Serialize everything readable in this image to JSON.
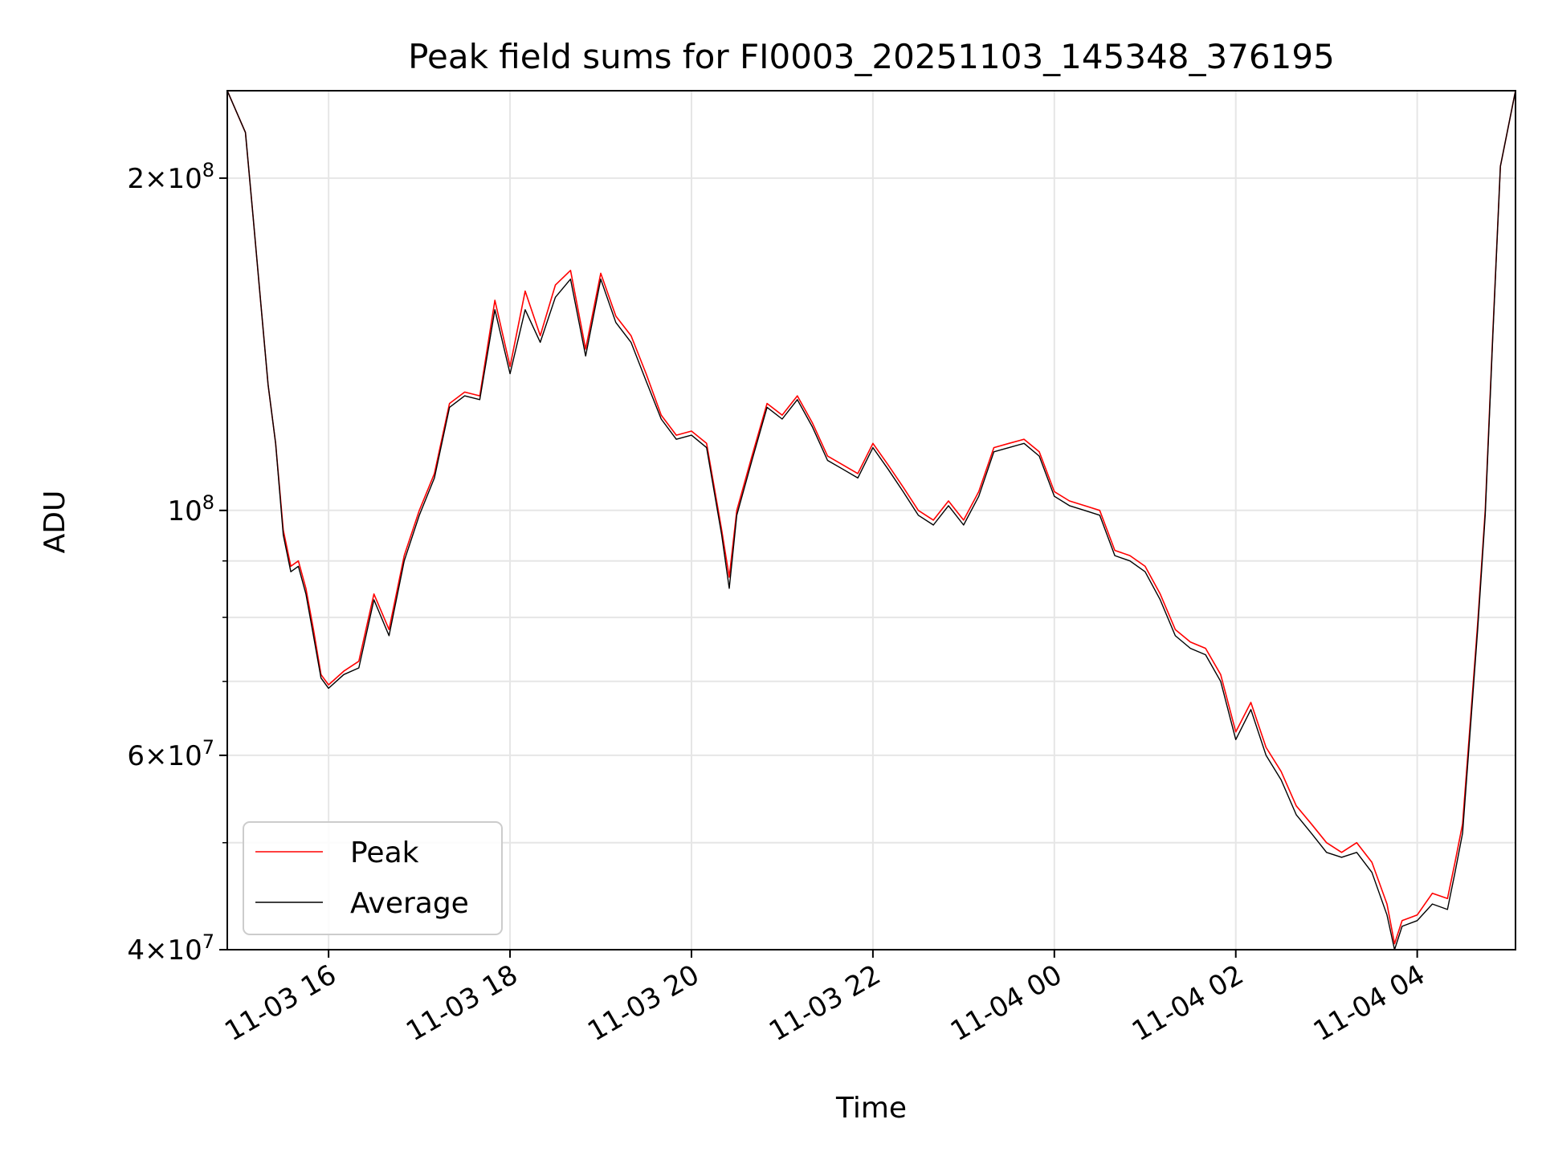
{
  "chart_data": {
    "type": "line",
    "title": "Peak field sums for FI0003_20251103_145348_376195",
    "xlabel": "Time",
    "ylabel": "ADU",
    "x_scale": "time",
    "y_scale": "log",
    "xlim": [
      "2025-11-03 14:53",
      "2025-11-04 05:05"
    ],
    "ylim": [
      40000000,
      240000000
    ],
    "grid": true,
    "legend": "lower-left",
    "x_ticks": [
      {
        "t": "2025-11-03 16:00",
        "label": "11-03 16"
      },
      {
        "t": "2025-11-03 18:00",
        "label": "11-03 18"
      },
      {
        "t": "2025-11-03 20:00",
        "label": "11-03 20"
      },
      {
        "t": "2025-11-03 22:00",
        "label": "11-03 22"
      },
      {
        "t": "2025-11-04 00:00",
        "label": "11-04 00"
      },
      {
        "t": "2025-11-04 02:00",
        "label": "11-04 02"
      },
      {
        "t": "2025-11-04 04:00",
        "label": "11-04 04"
      }
    ],
    "y_major_ticks": [
      {
        "value": 40000000,
        "mant": "4",
        "exp": "7"
      },
      {
        "value": 60000000,
        "mant": "6",
        "exp": "7"
      },
      {
        "value": 100000000,
        "mant": "",
        "exp": "8"
      },
      {
        "value": 200000000,
        "mant": "2",
        "exp": "8"
      }
    ],
    "y_minor_ticks": [
      50000000,
      70000000,
      80000000,
      90000000
    ],
    "series": [
      {
        "name": "Peak",
        "color": "#ff0000",
        "x": [
          "2025-11-03 14:53",
          "2025-11-03 15:05",
          "2025-11-03 15:10",
          "2025-11-03 15:15",
          "2025-11-03 15:20",
          "2025-11-03 15:25",
          "2025-11-03 15:30",
          "2025-11-03 15:35",
          "2025-11-03 15:40",
          "2025-11-03 15:45",
          "2025-11-03 15:50",
          "2025-11-03 15:55",
          "2025-11-03 16:00",
          "2025-11-03 16:10",
          "2025-11-03 16:20",
          "2025-11-03 16:30",
          "2025-11-03 16:40",
          "2025-11-03 16:50",
          "2025-11-03 17:00",
          "2025-11-03 17:10",
          "2025-11-03 17:20",
          "2025-11-03 17:30",
          "2025-11-03 17:40",
          "2025-11-03 17:50",
          "2025-11-03 18:00",
          "2025-11-03 18:10",
          "2025-11-03 18:20",
          "2025-11-03 18:30",
          "2025-11-03 18:40",
          "2025-11-03 18:50",
          "2025-11-03 19:00",
          "2025-11-03 19:10",
          "2025-11-03 19:20",
          "2025-11-03 19:30",
          "2025-11-03 19:40",
          "2025-11-03 19:50",
          "2025-11-03 20:00",
          "2025-11-03 20:10",
          "2025-11-03 20:20",
          "2025-11-03 20:25",
          "2025-11-03 20:30",
          "2025-11-03 20:40",
          "2025-11-03 20:50",
          "2025-11-03 21:00",
          "2025-11-03 21:10",
          "2025-11-03 21:20",
          "2025-11-03 21:30",
          "2025-11-03 21:40",
          "2025-11-03 21:50",
          "2025-11-03 22:00",
          "2025-11-03 22:10",
          "2025-11-03 22:20",
          "2025-11-03 22:30",
          "2025-11-03 22:40",
          "2025-11-03 22:50",
          "2025-11-03 23:00",
          "2025-11-03 23:10",
          "2025-11-03 23:20",
          "2025-11-03 23:30",
          "2025-11-03 23:40",
          "2025-11-03 23:50",
          "2025-11-04 00:00",
          "2025-11-04 00:10",
          "2025-11-04 00:20",
          "2025-11-04 00:30",
          "2025-11-04 00:40",
          "2025-11-04 00:50",
          "2025-11-04 01:00",
          "2025-11-04 01:10",
          "2025-11-04 01:20",
          "2025-11-04 01:30",
          "2025-11-04 01:40",
          "2025-11-04 01:50",
          "2025-11-04 02:00",
          "2025-11-04 02:10",
          "2025-11-04 02:20",
          "2025-11-04 02:30",
          "2025-11-04 02:40",
          "2025-11-04 02:50",
          "2025-11-04 03:00",
          "2025-11-04 03:10",
          "2025-11-04 03:20",
          "2025-11-04 03:30",
          "2025-11-04 03:40",
          "2025-11-04 03:45",
          "2025-11-04 03:50",
          "2025-11-04 04:00",
          "2025-11-04 04:10",
          "2025-11-04 04:20",
          "2025-11-04 04:25",
          "2025-11-04 04:30",
          "2025-11-04 04:35",
          "2025-11-04 04:40",
          "2025-11-04 04:45",
          "2025-11-04 04:50",
          "2025-11-04 04:55",
          "2025-11-04 05:05"
        ],
        "values": [
          240000000,
          220000000,
          185000000,
          155000000,
          130000000,
          115000000,
          96000000,
          89000000,
          90000000,
          85000000,
          78000000,
          71000000,
          69500000,
          71500000,
          73000000,
          84000000,
          78000000,
          91000000,
          100000000,
          108000000,
          125000000,
          128000000,
          127000000,
          155000000,
          135000000,
          158000000,
          144000000,
          160000000,
          165000000,
          140000000,
          164000000,
          150000000,
          144000000,
          133000000,
          122000000,
          117000000,
          118000000,
          115000000,
          96000000,
          87000000,
          100000000,
          112000000,
          125000000,
          122000000,
          127000000,
          120000000,
          112000000,
          110000000,
          108000000,
          115000000,
          110000000,
          105000000,
          100000000,
          98000000,
          102000000,
          98000000,
          104000000,
          114000000,
          115000000,
          116000000,
          113000000,
          104000000,
          102000000,
          101000000,
          100000000,
          92000000,
          91000000,
          89000000,
          84000000,
          78000000,
          76000000,
          75000000,
          71000000,
          63000000,
          67000000,
          61000000,
          58000000,
          54000000,
          52000000,
          50000000,
          49000000,
          50000000,
          48000000,
          44000000,
          40500000,
          42500000,
          43000000,
          45000000,
          44500000,
          48000000,
          52000000,
          64000000,
          79000000,
          100000000,
          145000000,
          205000000,
          240000000
        ]
      },
      {
        "name": "Average",
        "color": "#000000",
        "x": [
          "2025-11-03 14:53",
          "2025-11-03 15:05",
          "2025-11-03 15:10",
          "2025-11-03 15:15",
          "2025-11-03 15:20",
          "2025-11-03 15:25",
          "2025-11-03 15:30",
          "2025-11-03 15:35",
          "2025-11-03 15:40",
          "2025-11-03 15:45",
          "2025-11-03 15:50",
          "2025-11-03 15:55",
          "2025-11-03 16:00",
          "2025-11-03 16:10",
          "2025-11-03 16:20",
          "2025-11-03 16:30",
          "2025-11-03 16:40",
          "2025-11-03 16:50",
          "2025-11-03 17:00",
          "2025-11-03 17:10",
          "2025-11-03 17:20",
          "2025-11-03 17:30",
          "2025-11-03 17:40",
          "2025-11-03 17:50",
          "2025-11-03 18:00",
          "2025-11-03 18:10",
          "2025-11-03 18:20",
          "2025-11-03 18:30",
          "2025-11-03 18:40",
          "2025-11-03 18:50",
          "2025-11-03 19:00",
          "2025-11-03 19:10",
          "2025-11-03 19:20",
          "2025-11-03 19:30",
          "2025-11-03 19:40",
          "2025-11-03 19:50",
          "2025-11-03 20:00",
          "2025-11-03 20:10",
          "2025-11-03 20:20",
          "2025-11-03 20:25",
          "2025-11-03 20:30",
          "2025-11-03 20:40",
          "2025-11-03 20:50",
          "2025-11-03 21:00",
          "2025-11-03 21:10",
          "2025-11-03 21:20",
          "2025-11-03 21:30",
          "2025-11-03 21:40",
          "2025-11-03 21:50",
          "2025-11-03 22:00",
          "2025-11-03 22:10",
          "2025-11-03 22:20",
          "2025-11-03 22:30",
          "2025-11-03 22:40",
          "2025-11-03 22:50",
          "2025-11-03 23:00",
          "2025-11-03 23:10",
          "2025-11-03 23:20",
          "2025-11-03 23:30",
          "2025-11-03 23:40",
          "2025-11-03 23:50",
          "2025-11-04 00:00",
          "2025-11-04 00:10",
          "2025-11-04 00:20",
          "2025-11-04 00:30",
          "2025-11-04 00:40",
          "2025-11-04 00:50",
          "2025-11-04 01:00",
          "2025-11-04 01:10",
          "2025-11-04 01:20",
          "2025-11-04 01:30",
          "2025-11-04 01:40",
          "2025-11-04 01:50",
          "2025-11-04 02:00",
          "2025-11-04 02:10",
          "2025-11-04 02:20",
          "2025-11-04 02:30",
          "2025-11-04 02:40",
          "2025-11-04 02:50",
          "2025-11-04 03:00",
          "2025-11-04 03:10",
          "2025-11-04 03:20",
          "2025-11-04 03:30",
          "2025-11-04 03:40",
          "2025-11-04 03:45",
          "2025-11-04 03:50",
          "2025-11-04 04:00",
          "2025-11-04 04:10",
          "2025-11-04 04:20",
          "2025-11-04 04:25",
          "2025-11-04 04:30",
          "2025-11-04 04:35",
          "2025-11-04 04:40",
          "2025-11-04 04:45",
          "2025-11-04 04:50",
          "2025-11-04 04:55",
          "2025-11-04 05:05"
        ],
        "values": [
          240000000,
          220000000,
          185000000,
          155000000,
          130000000,
          115000000,
          95000000,
          88000000,
          89000000,
          84000000,
          77000000,
          70500000,
          69000000,
          71000000,
          72000000,
          83000000,
          77000000,
          90000000,
          99000000,
          107000000,
          124000000,
          127000000,
          126000000,
          152000000,
          133000000,
          152000000,
          142000000,
          156000000,
          162000000,
          138000000,
          162000000,
          148000000,
          142000000,
          131000000,
          121000000,
          116000000,
          117000000,
          114000000,
          95000000,
          85000000,
          99000000,
          111000000,
          124000000,
          121000000,
          126000000,
          119000000,
          111000000,
          109000000,
          107000000,
          114000000,
          109000000,
          104000000,
          99000000,
          97000000,
          101000000,
          97000000,
          103000000,
          113000000,
          114000000,
          115000000,
          112000000,
          103000000,
          101000000,
          100000000,
          99000000,
          91000000,
          90000000,
          88000000,
          83000000,
          77000000,
          75000000,
          74000000,
          70000000,
          62000000,
          66000000,
          60000000,
          57000000,
          53000000,
          51000000,
          49000000,
          48500000,
          49000000,
          47000000,
          43000000,
          40000000,
          42000000,
          42500000,
          44000000,
          43500000,
          47000000,
          51000000,
          63000000,
          78000000,
          99000000,
          144000000,
          205000000,
          240000000
        ]
      }
    ]
  }
}
